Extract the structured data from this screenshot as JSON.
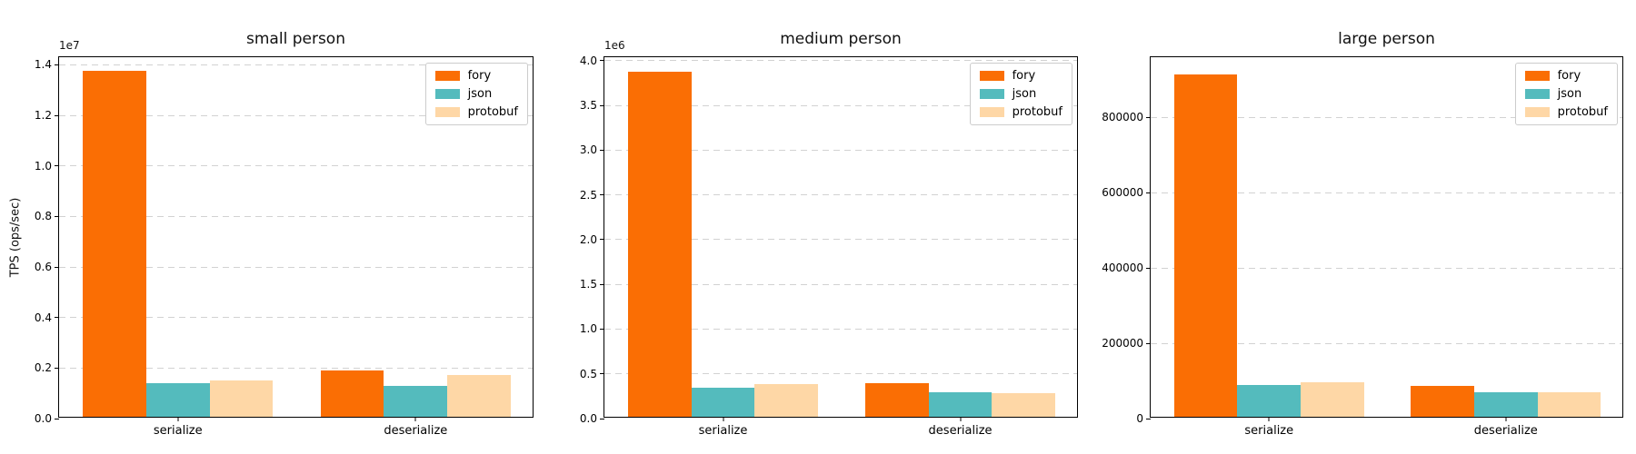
{
  "axis": {
    "ylabel": "TPS (ops/sec)"
  },
  "legend": {
    "position": "upper right",
    "items": [
      {
        "label": "fory",
        "color": "#fa6e04"
      },
      {
        "label": "json",
        "color": "#54bbbd"
      },
      {
        "label": "protobuf",
        "color": "#fed7a6"
      }
    ]
  },
  "chart_data": [
    {
      "type": "bar",
      "title": "small person",
      "ylabel": "TPS (ops/sec)",
      "offset_label": "1e7",
      "grid": "horizontal-dashed",
      "legend_position": "upper right",
      "categories": [
        "serialize",
        "deserialize"
      ],
      "series": [
        {
          "name": "fory",
          "values": [
            13680000,
            1850000
          ]
        },
        {
          "name": "json",
          "values": [
            1320000,
            1220000
          ]
        },
        {
          "name": "protobuf",
          "values": [
            1450000,
            1670000
          ]
        }
      ],
      "ylim": [
        0,
        14300000
      ],
      "yticks": [
        {
          "value": 0,
          "label": "0.0"
        },
        {
          "value": 2000000,
          "label": "0.2"
        },
        {
          "value": 4000000,
          "label": "0.4"
        },
        {
          "value": 6000000,
          "label": "0.6"
        },
        {
          "value": 8000000,
          "label": "0.8"
        },
        {
          "value": 10000000,
          "label": "1.0"
        },
        {
          "value": 12000000,
          "label": "1.2"
        },
        {
          "value": 14000000,
          "label": "1.4"
        }
      ]
    },
    {
      "type": "bar",
      "title": "medium person",
      "offset_label": "1e6",
      "grid": "horizontal-dashed",
      "legend_position": "upper right",
      "categories": [
        "serialize",
        "deserialize"
      ],
      "series": [
        {
          "name": "fory",
          "values": [
            3860000,
            380000
          ]
        },
        {
          "name": "json",
          "values": [
            330000,
            270000
          ]
        },
        {
          "name": "protobuf",
          "values": [
            370000,
            265000
          ]
        }
      ],
      "ylim": [
        0,
        4040000
      ],
      "yticks": [
        {
          "value": 0,
          "label": "0.0"
        },
        {
          "value": 500000,
          "label": "0.5"
        },
        {
          "value": 1000000,
          "label": "1.0"
        },
        {
          "value": 1500000,
          "label": "1.5"
        },
        {
          "value": 2000000,
          "label": "2.0"
        },
        {
          "value": 2500000,
          "label": "2.5"
        },
        {
          "value": 3000000,
          "label": "3.0"
        },
        {
          "value": 3500000,
          "label": "3.5"
        },
        {
          "value": 4000000,
          "label": "4.0"
        }
      ]
    },
    {
      "type": "bar",
      "title": "large person",
      "grid": "horizontal-dashed",
      "legend_position": "upper right",
      "categories": [
        "serialize",
        "deserialize"
      ],
      "series": [
        {
          "name": "fory",
          "values": [
            910000,
            82000
          ]
        },
        {
          "name": "json",
          "values": [
            84000,
            66000
          ]
        },
        {
          "name": "protobuf",
          "values": [
            92000,
            64000
          ]
        }
      ],
      "ylim": [
        0,
        960000
      ],
      "yticks": [
        {
          "value": 0,
          "label": "0"
        },
        {
          "value": 200000,
          "label": "200000"
        },
        {
          "value": 400000,
          "label": "400000"
        },
        {
          "value": 600000,
          "label": "600000"
        },
        {
          "value": 800000,
          "label": "800000"
        }
      ]
    }
  ]
}
